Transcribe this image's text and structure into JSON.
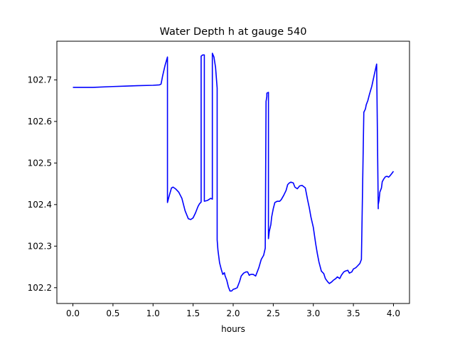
{
  "chart_data": {
    "type": "line",
    "title": "Water Depth h at gauge 540",
    "xlabel": "hours",
    "ylabel": "",
    "xlim": [
      -0.2,
      4.2
    ],
    "ylim": [
      102.162,
      102.793
    ],
    "xticks": [
      0.0,
      0.5,
      1.0,
      1.5,
      2.0,
      2.5,
      3.0,
      3.5,
      4.0
    ],
    "xtick_labels": [
      "0.0",
      "0.5",
      "1.0",
      "1.5",
      "2.0",
      "2.5",
      "3.0",
      "3.5",
      "4.0"
    ],
    "yticks": [
      102.2,
      102.3,
      102.4,
      102.5,
      102.6,
      102.7
    ],
    "ytick_labels": [
      "102.2",
      "102.3",
      "102.4",
      "102.5",
      "102.6",
      "102.7"
    ],
    "grid": false,
    "legend": "none",
    "series": [
      {
        "color": "#0000ff",
        "x": [
          0.0,
          0.25,
          0.5,
          0.65,
          0.8,
          1.0,
          1.08,
          1.1,
          1.12,
          1.15,
          1.18,
          1.18,
          1.2,
          1.23,
          1.25,
          1.28,
          1.32,
          1.36,
          1.4,
          1.44,
          1.47,
          1.5,
          1.53,
          1.56,
          1.58,
          1.6,
          1.6,
          1.62,
          1.64,
          1.64,
          1.68,
          1.72,
          1.74,
          1.74,
          1.76,
          1.78,
          1.8,
          1.8,
          1.81,
          1.83,
          1.85,
          1.87,
          1.89,
          1.9,
          1.92,
          1.94,
          1.96,
          1.98,
          2.0,
          2.03,
          2.05,
          2.08,
          2.1,
          2.13,
          2.16,
          2.18,
          2.2,
          2.22,
          2.25,
          2.28,
          2.3,
          2.32,
          2.35,
          2.38,
          2.4,
          2.41,
          2.42,
          2.42,
          2.44,
          2.44,
          2.45,
          2.47,
          2.48,
          2.5,
          2.52,
          2.55,
          2.58,
          2.6,
          2.63,
          2.66,
          2.68,
          2.7,
          2.72,
          2.75,
          2.77,
          2.8,
          2.83,
          2.86,
          2.9,
          2.93,
          2.95,
          2.97,
          3.0,
          3.03,
          3.05,
          3.07,
          3.1,
          3.13,
          3.15,
          3.18,
          3.2,
          3.23,
          3.25,
          3.28,
          3.3,
          3.33,
          3.35,
          3.38,
          3.4,
          3.43,
          3.45,
          3.48,
          3.5,
          3.53,
          3.55,
          3.58,
          3.6,
          3.63,
          3.65,
          3.66,
          3.68,
          3.7,
          3.73,
          3.76,
          3.79,
          3.81,
          3.81,
          3.82,
          3.83,
          3.85,
          3.86,
          3.88,
          3.9,
          3.92,
          3.94,
          3.96,
          3.98,
          4.0
        ],
        "y": [
          102.682,
          102.682,
          102.684,
          102.685,
          102.686,
          102.687,
          102.688,
          102.69,
          102.71,
          102.735,
          102.755,
          102.405,
          102.42,
          102.44,
          102.442,
          102.438,
          102.43,
          102.415,
          102.385,
          102.366,
          102.364,
          102.368,
          102.38,
          102.395,
          102.402,
          102.406,
          102.757,
          102.76,
          102.76,
          102.408,
          102.41,
          102.415,
          102.413,
          102.764,
          102.755,
          102.73,
          102.68,
          102.315,
          102.29,
          102.26,
          102.245,
          102.232,
          102.236,
          102.228,
          102.218,
          102.202,
          102.192,
          102.192,
          102.196,
          102.198,
          102.2,
          102.215,
          102.228,
          102.235,
          102.238,
          102.238,
          102.23,
          102.232,
          102.232,
          102.228,
          102.238,
          102.248,
          102.268,
          102.278,
          102.295,
          102.648,
          102.66,
          102.668,
          102.67,
          102.318,
          102.335,
          102.352,
          102.37,
          102.39,
          102.405,
          102.408,
          102.408,
          102.412,
          102.422,
          102.434,
          102.448,
          102.452,
          102.454,
          102.452,
          102.442,
          102.438,
          102.445,
          102.446,
          102.44,
          102.41,
          102.392,
          102.37,
          102.345,
          102.305,
          102.282,
          102.262,
          102.24,
          102.234,
          102.222,
          102.214,
          102.21,
          102.214,
          102.218,
          102.222,
          102.226,
          102.222,
          102.23,
          102.238,
          102.24,
          102.242,
          102.235,
          102.238,
          102.245,
          102.248,
          102.252,
          102.258,
          102.268,
          102.622,
          102.63,
          102.64,
          102.65,
          102.665,
          102.685,
          102.712,
          102.738,
          102.39,
          102.4,
          102.41,
          102.43,
          102.44,
          102.455,
          102.462,
          102.467,
          102.468,
          102.466,
          102.47,
          102.475,
          102.48
        ]
      }
    ]
  }
}
